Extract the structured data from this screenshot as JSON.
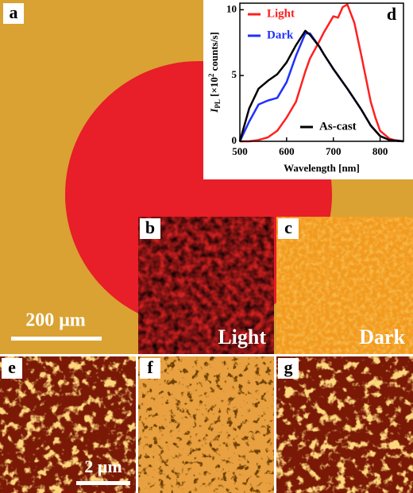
{
  "panel_labels": [
    "a",
    "b",
    "c",
    "e",
    "f",
    "g"
  ],
  "image_labels": [
    "Light",
    "Dark"
  ],
  "scale_bars": [
    "200 μm",
    "2 μm"
  ],
  "chart_data": {
    "type": "line",
    "panel_label": "d",
    "x_label": "Wavelength [nm]",
    "y_label": [
      "I",
      "PL",
      " [×10",
      "2",
      " counts/s]"
    ],
    "x": [
      500,
      520,
      540,
      560,
      580,
      600,
      620,
      640,
      650,
      670,
      680,
      700,
      710,
      720,
      730,
      745,
      760,
      780,
      790,
      800,
      820,
      830,
      850
    ],
    "series": [
      {
        "name": "Light",
        "color": "#ff2020",
        "values": [
          0,
          0,
          0.1,
          0.3,
          0.8,
          1.8,
          3.0,
          5.3,
          6.3,
          7.6,
          8.3,
          9.5,
          9.4,
          10.2,
          10.4,
          9.0,
          6.5,
          3.0,
          1.8,
          0.8,
          0.2,
          0.1,
          0
        ]
      },
      {
        "name": "Dark",
        "color": "#2030ff",
        "values": [
          0,
          1.5,
          2.8,
          3.1,
          3.3,
          4.5,
          6.5,
          8.2,
          8.2,
          7.2,
          6.6,
          5.5,
          5.0,
          4.5,
          4.0,
          3.2,
          2.4,
          1.2,
          0.8,
          0.4,
          0.1,
          0.05,
          0
        ]
      },
      {
        "name": "As-cast",
        "color": "#000000",
        "values": [
          0,
          2.5,
          4.0,
          4.6,
          5.1,
          6.0,
          7.3,
          8.4,
          8.1,
          7.2,
          6.6,
          5.5,
          5.0,
          4.5,
          4.0,
          3.2,
          2.4,
          1.2,
          0.8,
          0.4,
          0.1,
          0.05,
          0
        ]
      }
    ],
    "xlim": [
      500,
      850
    ],
    "xticks": [
      500,
      600,
      700,
      800
    ],
    "ylim": [
      0,
      10.5
    ],
    "yticks": [
      0,
      5,
      10
    ]
  }
}
